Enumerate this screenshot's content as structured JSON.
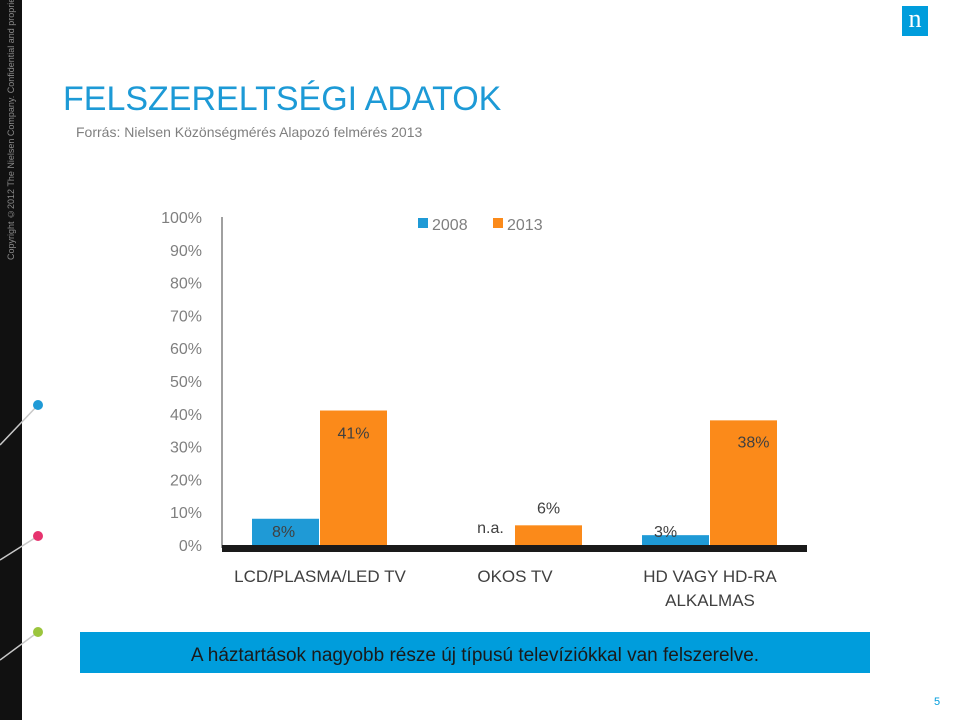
{
  "header": {
    "title": "FELSZERELTSÉGI ADATOK",
    "source": "Forrás: Nielsen Közönségmérés Alapozó felmérés 2013",
    "copyright": "Copyright ©2012 The Nielsen Company. Confidential and proprietary.",
    "logo_letter": "n"
  },
  "colors": {
    "series_2008": "#1f9ad6",
    "series_2013": "#fb8a1a",
    "brand": "#009ddc"
  },
  "chart_data": {
    "type": "bar",
    "categories": [
      "LCD/PLASMA/LED TV",
      "OKOS TV",
      "HD VAGY HD-RA ALKALMAS"
    ],
    "category_lines": [
      [
        "LCD/PLASMA/LED TV"
      ],
      [
        "OKOS TV"
      ],
      [
        "HD VAGY HD-RA",
        "ALKALMAS"
      ]
    ],
    "series": [
      {
        "name": "2008",
        "values": [
          8,
          null,
          3
        ],
        "labels": [
          "8%",
          "n.a.",
          "3%"
        ]
      },
      {
        "name": "2013",
        "values": [
          41,
          6,
          38
        ],
        "labels": [
          "41%",
          "6%",
          "38%"
        ]
      }
    ],
    "ylim": [
      0,
      100
    ],
    "yticks": [
      "0%",
      "10%",
      "20%",
      "30%",
      "40%",
      "50%",
      "60%",
      "70%",
      "80%",
      "90%",
      "100%"
    ],
    "legend_position": "top",
    "grid": false
  },
  "footer": {
    "banner": "A háztartások nagyobb része új típusú televíziókkal van felszerelve.",
    "page_number": "5"
  }
}
